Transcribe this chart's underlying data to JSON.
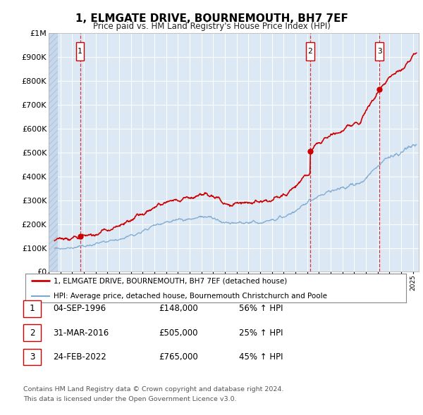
{
  "title": "1, ELMGATE DRIVE, BOURNEMOUTH, BH7 7EF",
  "subtitle": "Price paid vs. HM Land Registry's House Price Index (HPI)",
  "ylim": [
    0,
    1000000
  ],
  "yticks": [
    0,
    100000,
    200000,
    300000,
    400000,
    500000,
    600000,
    700000,
    800000,
    900000,
    1000000
  ],
  "ytick_labels": [
    "£0",
    "£100K",
    "£200K",
    "£300K",
    "£400K",
    "£500K",
    "£600K",
    "£700K",
    "£800K",
    "£900K",
    "£1M"
  ],
  "background_color": "#dce9f5",
  "grid_color": "#ffffff",
  "sale_prices": [
    148000,
    505000,
    765000
  ],
  "sale_labels": [
    "1",
    "2",
    "3"
  ],
  "sale_years": [
    1996.67,
    2016.25,
    2022.15
  ],
  "legend_line1": "1, ELMGATE DRIVE, BOURNEMOUTH, BH7 7EF (detached house)",
  "legend_line2": "HPI: Average price, detached house, Bournemouth Christchurch and Poole",
  "table_rows": [
    {
      "num": "1",
      "date": "04-SEP-1996",
      "price": "£148,000",
      "hpi": "56% ↑ HPI"
    },
    {
      "num": "2",
      "date": "31-MAR-2016",
      "price": "£505,000",
      "hpi": "25% ↑ HPI"
    },
    {
      "num": "3",
      "date": "24-FEB-2022",
      "price": "£765,000",
      "hpi": "45% ↑ HPI"
    }
  ],
  "footnote1": "Contains HM Land Registry data © Crown copyright and database right 2024.",
  "footnote2": "This data is licensed under the Open Government Licence v3.0.",
  "red_line_color": "#cc0000",
  "blue_line_color": "#7aa7d0",
  "xmin": 1994.0,
  "xmax": 2025.5
}
